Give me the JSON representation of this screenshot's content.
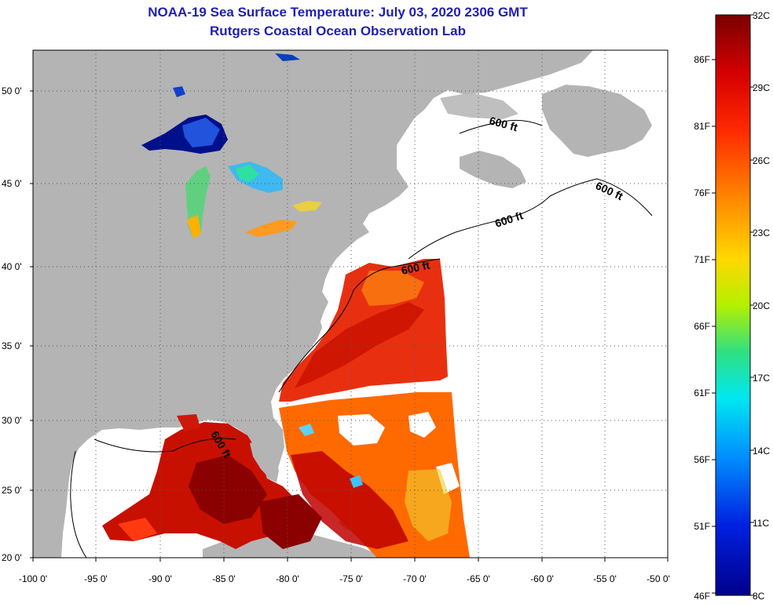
{
  "title": "NOAA-19 Sea Surface Temperature:  July 03, 2020 2306 GMT",
  "subtitle": "Rutgers Coastal Ocean Observation Lab",
  "lat_ticks": [
    "50 0'",
    "45 0'",
    "40 0'",
    "35 0'",
    "30 0'",
    "25 0'",
    "20 0'"
  ],
  "lon_ticks": [
    "-100 0'",
    "-95 0'",
    "-90 0'",
    "-85 0'",
    "-80 0'",
    "-75 0'",
    "-70 0'",
    "-65 0'",
    "-60 0'",
    "-55 0'",
    "-50 0'"
  ],
  "contour_label": "600 ft",
  "colorbar": {
    "celsius": [
      "32C",
      "29C",
      "26C",
      "23C",
      "20C",
      "17C",
      "14C",
      "11C",
      "8C"
    ],
    "fahrenheit": [
      "86F",
      "81F",
      "76F",
      "71F",
      "66F",
      "61F",
      "56F",
      "51F",
      "46F"
    ]
  },
  "colors": {
    "land": "#b4b4b4",
    "ocean_nodata": "#ffffff",
    "title": "#1f1fb4",
    "warm": "#8b0000",
    "hot": "#e02000",
    "cold": "#00008b"
  }
}
